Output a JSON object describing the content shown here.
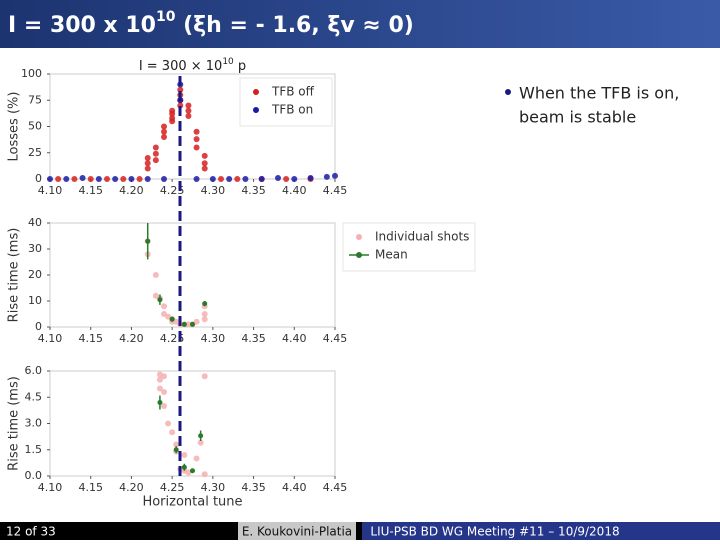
{
  "slide_title": {
    "text": "I = 300 x 10",
    "sup": "10",
    "rest": " (ξh = - 1.6, ξv ≈ 0)"
  },
  "bullet": [
    "When the TFB is on,",
    "beam is stable"
  ],
  "footer": {
    "page": "12 of 33",
    "author": "E. Koukovini-Platia",
    "meeting": "LIU-PSB BD WG Meeting #11 – 10/9/2018"
  },
  "chart_data": [
    {
      "type": "scatter",
      "title": {
        "text": "I = 300 × 10",
        "sup": "10",
        "rest": " p"
      },
      "ylabel": "Losses (%)",
      "legend": "upper right",
      "xlim": [
        4.1,
        4.45
      ],
      "xticks": [
        {
          "value": 4.1,
          "label": "4.10"
        },
        4.15,
        {
          "value": 4.2,
          "label": "4.20"
        },
        4.25,
        {
          "value": 4.3,
          "label": "4.30"
        },
        4.35,
        {
          "value": 4.4,
          "label": "4.40"
        },
        4.45
      ],
      "ylim": [
        0,
        100
      ],
      "yticks": [
        0,
        25,
        50,
        75,
        100
      ],
      "series": [
        {
          "name": "TFB off",
          "color": "#d62020",
          "x": [
            4.11,
            4.13,
            4.15,
            4.17,
            4.19,
            4.21,
            4.22,
            4.22,
            4.22,
            4.23,
            4.23,
            4.23,
            4.24,
            4.24,
            4.24,
            4.25,
            4.25,
            4.25,
            4.25,
            4.26,
            4.26,
            4.26,
            4.26,
            4.27,
            4.27,
            4.27,
            4.28,
            4.28,
            4.28,
            4.29,
            4.29,
            4.29,
            4.31,
            4.33,
            4.36,
            4.39,
            4.42
          ],
          "values": [
            0,
            0,
            0,
            0,
            0,
            0,
            10,
            15,
            20,
            18,
            24,
            30,
            40,
            45,
            50,
            55,
            58,
            62,
            65,
            70,
            75,
            80,
            85,
            60,
            65,
            70,
            30,
            38,
            45,
            10,
            15,
            22,
            0,
            0,
            0,
            0,
            0
          ]
        },
        {
          "name": "TFB on",
          "color": "#1a1aa6",
          "x": [
            4.1,
            4.12,
            4.14,
            4.16,
            4.18,
            4.2,
            4.22,
            4.24,
            4.26,
            4.26,
            4.28,
            4.3,
            4.32,
            4.34,
            4.36,
            4.38,
            4.4,
            4.42,
            4.44,
            4.45
          ],
          "values": [
            0,
            0,
            1,
            0,
            0,
            0,
            0,
            0,
            90,
            75,
            0,
            0,
            0,
            0,
            0,
            1,
            0,
            1,
            2,
            3
          ]
        }
      ]
    },
    {
      "type": "scatter",
      "ylabel": "Rise time (ms)",
      "legend": "right",
      "xlim": [
        4.1,
        4.45
      ],
      "xticks": [
        {
          "value": 4.1,
          "label": "4.10"
        },
        4.15,
        {
          "value": 4.2,
          "label": "4.20"
        },
        4.25,
        {
          "value": 4.3,
          "label": "4.30"
        },
        4.35,
        {
          "value": 4.4,
          "label": "4.40"
        },
        4.45
      ],
      "ylim": [
        0,
        40
      ],
      "yticks": [
        0,
        10,
        20,
        30,
        40
      ],
      "series": [
        {
          "name": "Individual shots",
          "color": "#f5b0b0",
          "x": [
            4.22,
            4.22,
            4.23,
            4.23,
            4.235,
            4.24,
            4.24,
            4.245,
            4.25,
            4.25,
            4.255,
            4.26,
            4.265,
            4.27,
            4.275,
            4.28,
            4.29,
            4.29,
            4.29
          ],
          "values": [
            33,
            28,
            20,
            12,
            11,
            8,
            5,
            4,
            3,
            2,
            2,
            1,
            1,
            1,
            1,
            2,
            8,
            5,
            3
          ]
        },
        {
          "name": "Mean",
          "color": "#2a7a2a",
          "x": [
            4.22,
            4.235,
            4.25,
            4.265,
            4.275,
            4.29
          ],
          "values": [
            33,
            10.5,
            3,
            1,
            1,
            9
          ],
          "errors": [
            7,
            2,
            1,
            0.5,
            0.5,
            1
          ]
        }
      ]
    },
    {
      "type": "scatter",
      "ylabel": "Rise time (ms)",
      "xlabel": "Horizontal tune",
      "xlim": [
        4.1,
        4.45
      ],
      "xticks": [
        {
          "value": 4.1,
          "label": "4.10"
        },
        4.15,
        {
          "value": 4.2,
          "label": "4.20"
        },
        4.25,
        {
          "value": 4.3,
          "label": "4.30"
        },
        4.35,
        {
          "value": 4.4,
          "label": "4.40"
        },
        4.45
      ],
      "ylim": [
        0,
        6
      ],
      "yticks": [
        {
          "value": 0,
          "label": "0.0"
        },
        1.5,
        {
          "value": 3,
          "label": "3.0"
        },
        4.5,
        {
          "value": 6,
          "label": "6.0"
        }
      ],
      "series": [
        {
          "name": "Individual shots",
          "color": "#f5b0b0",
          "x": [
            4.235,
            4.235,
            4.235,
            4.24,
            4.24,
            4.24,
            4.245,
            4.25,
            4.255,
            4.255,
            4.26,
            4.265,
            4.265,
            4.27,
            4.28,
            4.285,
            4.29,
            4.29
          ],
          "values": [
            5.8,
            5.5,
            5,
            5.7,
            4.8,
            4,
            3,
            2.5,
            1.8,
            1.4,
            0.4,
            1.2,
            0.3,
            0.2,
            1,
            1.9,
            5.7,
            0.1
          ]
        },
        {
          "name": "Mean",
          "color": "#2a7a2a",
          "x": [
            4.235,
            4.255,
            4.265,
            4.275,
            4.285
          ],
          "values": [
            4.2,
            1.5,
            0.5,
            0.3,
            2.3
          ],
          "errors": [
            0.4,
            0.2,
            0.2,
            0.1,
            0.3
          ]
        }
      ]
    }
  ]
}
